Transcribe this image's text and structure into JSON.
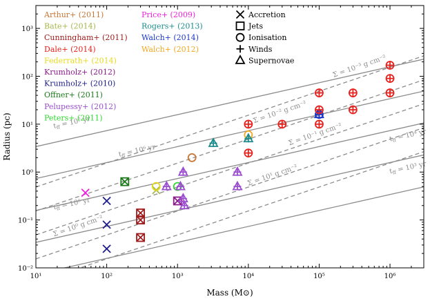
{
  "chart_data": {
    "type": "scatter",
    "xlabel": "Mass (M⊙)",
    "ylabel": "Radius (pc)",
    "xscale": "log",
    "yscale": "log",
    "xlim": [
      10,
      3000000
    ],
    "ylim": [
      0.01,
      3000
    ],
    "xticks": [
      {
        "v": 10,
        "label": "10¹"
      },
      {
        "v": 100,
        "label": "10²"
      },
      {
        "v": 1000,
        "label": "10³"
      },
      {
        "v": 10000,
        "label": "10⁴"
      },
      {
        "v": 100000,
        "label": "10⁵"
      },
      {
        "v": 1000000,
        "label": "10⁶"
      }
    ],
    "yticks": [
      {
        "v": 0.01,
        "label": "10⁻²"
      },
      {
        "v": 0.1,
        "label": "10⁻¹"
      },
      {
        "v": 1,
        "label": "10⁰"
      },
      {
        "v": 10,
        "label": "10¹"
      },
      {
        "v": 100,
        "label": "10²"
      },
      {
        "v": 1000,
        "label": "10³"
      }
    ],
    "references": [
      {
        "name": "Arthur+ (2011)",
        "color": "#c87533"
      },
      {
        "name": "Bate+ (2014)",
        "color": "#a5b84a"
      },
      {
        "name": "Cunningham+ (2011)",
        "color": "#a01c1c"
      },
      {
        "name": "Dale+ (2014)",
        "color": "#e8201c"
      },
      {
        "name": "Federrath+ (2014)",
        "color": "#e8d81c"
      },
      {
        "name": "Krumholz+ (2012)",
        "color": "#8b1a8b"
      },
      {
        "name": "Krumholz+ (2010)",
        "color": "#1c1c8b"
      },
      {
        "name": "Offner+ (2011)",
        "color": "#1c7a1c"
      },
      {
        "name": "Pelupessy+ (2012)",
        "color": "#9b4fd0"
      },
      {
        "name": "Peters+ (2011)",
        "color": "#2ed82e"
      },
      {
        "name": "Price+ (2009)",
        "color": "#f020e0"
      },
      {
        "name": "Rogers+ (2013)",
        "color": "#1c8b8b"
      },
      {
        "name": "Walch+ (2014)",
        "color": "#1c38c8"
      },
      {
        "name": "Walch+ (2012)",
        "color": "#f0a820"
      }
    ],
    "feedback_legend": [
      {
        "symbol": "x",
        "label": "Accretion"
      },
      {
        "symbol": "square",
        "label": "Jets"
      },
      {
        "symbol": "circle",
        "label": "Ionisation"
      },
      {
        "symbol": "plus",
        "label": "Winds"
      },
      {
        "symbol": "triangle",
        "label": "Supernovae"
      }
    ],
    "free_fall_lines": [
      {
        "label": "t",
        "sub": "ff",
        "rest": " = 10³ yr",
        "coef": 0.0034,
        "lx": 1000000,
        "ly": 0.93,
        "ang": -12
      },
      {
        "label": "t",
        "sub": "ff",
        "rest": " = 10⁴ yr",
        "coef": 0.0158,
        "lx": 1000000,
        "ly": 4.4,
        "ang": -12
      },
      {
        "label": "t",
        "sub": "ff",
        "rest": " = 10⁵ yr",
        "coef": 0.0733,
        "lx": 18,
        "ly": 0.165,
        "ang": -12
      },
      {
        "label": "t",
        "sub": "ff",
        "rest": " = 10⁶ yr",
        "coef": 0.34,
        "lx": 150,
        "ly": 2.1,
        "ang": -12
      },
      {
        "label": "t",
        "sub": "ff",
        "rest": " = 10⁷ yr",
        "coef": 1.58,
        "lx": 18,
        "ly": 8.2,
        "ang": -12
      }
    ],
    "surface_density_lines": [
      {
        "label": "Σ = 10¹ g cm⁻²",
        "coef": 0.00154,
        "lx": 10000,
        "ly": 0.52,
        "ang": -19
      },
      {
        "label": "Σ = 10⁰ g cm⁻²",
        "coef": 0.00487,
        "lx": 18,
        "ly": 0.045,
        "ang": -19
      },
      {
        "label": "Σ = 10⁻¹ g cm⁻²",
        "coef": 0.0154,
        "lx": 38000,
        "ly": 3.6,
        "ang": -19
      },
      {
        "label": "Σ = 10⁻² g cm⁻²",
        "coef": 0.0487,
        "lx": 12000,
        "ly": 10.5,
        "ang": -19
      },
      {
        "label": "Σ = 10⁻³ g cm⁻²",
        "coef": 0.154,
        "lx": 160000,
        "ly": 95,
        "ang": -19
      }
    ],
    "points": [
      {
        "ref": "Krumholz+ (2010)",
        "symbol": "x",
        "x": 100,
        "y": 0.25
      },
      {
        "ref": "Krumholz+ (2010)",
        "symbol": "x",
        "x": 100,
        "y": 0.08
      },
      {
        "ref": "Krumholz+ (2010)",
        "symbol": "x",
        "x": 100,
        "y": 0.025
      },
      {
        "ref": "Price+ (2009)",
        "symbol": "x",
        "x": 50,
        "y": 0.37
      },
      {
        "ref": "Bate+ (2014)",
        "symbol": "x",
        "x": 500,
        "y": 0.42
      },
      {
        "ref": "Offner+ (2011)",
        "symbol": "square",
        "x": 180,
        "y": 0.63
      },
      {
        "ref": "Offner+ (2011)",
        "symbol": "x",
        "x": 180,
        "y": 0.63
      },
      {
        "ref": "Cunningham+ (2011)",
        "symbol": "square",
        "x": 300,
        "y": 0.14
      },
      {
        "ref": "Cunningham+ (2011)",
        "symbol": "x",
        "x": 300,
        "y": 0.14
      },
      {
        "ref": "Cunningham+ (2011)",
        "symbol": "square",
        "x": 300,
        "y": 0.1
      },
      {
        "ref": "Cunningham+ (2011)",
        "symbol": "x",
        "x": 300,
        "y": 0.1
      },
      {
        "ref": "Cunningham+ (2011)",
        "symbol": "square",
        "x": 300,
        "y": 0.043
      },
      {
        "ref": "Cunningham+ (2011)",
        "symbol": "x",
        "x": 300,
        "y": 0.043
      },
      {
        "ref": "Krumholz+ (2012)",
        "symbol": "square",
        "x": 1000,
        "y": 0.25
      },
      {
        "ref": "Krumholz+ (2012)",
        "symbol": "x",
        "x": 1000,
        "y": 0.25
      },
      {
        "ref": "Federrath+ (2014)",
        "symbol": "circle",
        "x": 500,
        "y": 0.5
      },
      {
        "ref": "Peters+ (2011)",
        "symbol": "circle",
        "x": 1000,
        "y": 0.5
      },
      {
        "ref": "Arthur+ (2011)",
        "symbol": "circle",
        "x": 1600,
        "y": 2.0
      },
      {
        "ref": "Walch+ (2012)",
        "symbol": "circle",
        "x": 10000,
        "y": 6.0
      },
      {
        "ref": "Pelupessy+ (2012)",
        "symbol": "triangle",
        "x": 700,
        "y": 0.5
      },
      {
        "ref": "Pelupessy+ (2012)",
        "symbol": "plus",
        "x": 700,
        "y": 0.5
      },
      {
        "ref": "Pelupessy+ (2012)",
        "symbol": "triangle",
        "x": 1100,
        "y": 0.5
      },
      {
        "ref": "Pelupessy+ (2012)",
        "symbol": "plus",
        "x": 1100,
        "y": 0.5
      },
      {
        "ref": "Pelupessy+ (2012)",
        "symbol": "triangle",
        "x": 1200,
        "y": 1.0
      },
      {
        "ref": "Pelupessy+ (2012)",
        "symbol": "plus",
        "x": 1200,
        "y": 1.0
      },
      {
        "ref": "Pelupessy+ (2012)",
        "symbol": "triangle",
        "x": 1200,
        "y": 0.28
      },
      {
        "ref": "Pelupessy+ (2012)",
        "symbol": "plus",
        "x": 1200,
        "y": 0.28
      },
      {
        "ref": "Pelupessy+ (2012)",
        "symbol": "triangle",
        "x": 1250,
        "y": 0.2
      },
      {
        "ref": "Pelupessy+ (2012)",
        "symbol": "plus",
        "x": 1250,
        "y": 0.2
      },
      {
        "ref": "Pelupessy+ (2012)",
        "symbol": "triangle",
        "x": 7000,
        "y": 1.0
      },
      {
        "ref": "Pelupessy+ (2012)",
        "symbol": "plus",
        "x": 7000,
        "y": 1.0
      },
      {
        "ref": "Pelupessy+ (2012)",
        "symbol": "triangle",
        "x": 7000,
        "y": 0.5
      },
      {
        "ref": "Pelupessy+ (2012)",
        "symbol": "plus",
        "x": 7000,
        "y": 0.5
      },
      {
        "ref": "Rogers+ (2013)",
        "symbol": "triangle",
        "x": 3200,
        "y": 4.0
      },
      {
        "ref": "Rogers+ (2013)",
        "symbol": "plus",
        "x": 3200,
        "y": 4.0
      },
      {
        "ref": "Rogers+ (2013)",
        "symbol": "triangle",
        "x": 10000,
        "y": 5.0
      },
      {
        "ref": "Rogers+ (2013)",
        "symbol": "plus",
        "x": 10000,
        "y": 5.0
      },
      {
        "ref": "Walch+ (2014)",
        "symbol": "triangle",
        "x": 100000,
        "y": 16
      },
      {
        "ref": "Walch+ (2014)",
        "symbol": "circle",
        "x": 100000,
        "y": 16
      },
      {
        "ref": "Walch+ (2014)",
        "symbol": "plus",
        "x": 100000,
        "y": 16
      },
      {
        "ref": "Dale+ (2014)",
        "symbol": "circle",
        "x": 10000,
        "y": 10
      },
      {
        "ref": "Dale+ (2014)",
        "symbol": "plus",
        "x": 10000,
        "y": 10
      },
      {
        "ref": "Dale+ (2014)",
        "symbol": "circle",
        "x": 10000,
        "y": 2.5
      },
      {
        "ref": "Dale+ (2014)",
        "symbol": "plus",
        "x": 10000,
        "y": 2.5
      },
      {
        "ref": "Dale+ (2014)",
        "symbol": "circle",
        "x": 30000,
        "y": 10
      },
      {
        "ref": "Dale+ (2014)",
        "symbol": "plus",
        "x": 30000,
        "y": 10
      },
      {
        "ref": "Dale+ (2014)",
        "symbol": "circle",
        "x": 100000,
        "y": 45
      },
      {
        "ref": "Dale+ (2014)",
        "symbol": "plus",
        "x": 100000,
        "y": 45
      },
      {
        "ref": "Dale+ (2014)",
        "symbol": "circle",
        "x": 100000,
        "y": 20
      },
      {
        "ref": "Dale+ (2014)",
        "symbol": "plus",
        "x": 100000,
        "y": 20
      },
      {
        "ref": "Dale+ (2014)",
        "symbol": "circle",
        "x": 100000,
        "y": 10
      },
      {
        "ref": "Dale+ (2014)",
        "symbol": "plus",
        "x": 100000,
        "y": 10
      },
      {
        "ref": "Dale+ (2014)",
        "symbol": "circle",
        "x": 300000,
        "y": 45
      },
      {
        "ref": "Dale+ (2014)",
        "symbol": "plus",
        "x": 300000,
        "y": 45
      },
      {
        "ref": "Dale+ (2014)",
        "symbol": "circle",
        "x": 300000,
        "y": 20
      },
      {
        "ref": "Dale+ (2014)",
        "symbol": "plus",
        "x": 300000,
        "y": 20
      },
      {
        "ref": "Dale+ (2014)",
        "symbol": "circle",
        "x": 1000000,
        "y": 170
      },
      {
        "ref": "Dale+ (2014)",
        "symbol": "plus",
        "x": 1000000,
        "y": 170
      },
      {
        "ref": "Dale+ (2014)",
        "symbol": "circle",
        "x": 1000000,
        "y": 90
      },
      {
        "ref": "Dale+ (2014)",
        "symbol": "plus",
        "x": 1000000,
        "y": 90
      },
      {
        "ref": "Dale+ (2014)",
        "symbol": "circle",
        "x": 1000000,
        "y": 45
      },
      {
        "ref": "Dale+ (2014)",
        "symbol": "plus",
        "x": 1000000,
        "y": 45
      }
    ]
  }
}
